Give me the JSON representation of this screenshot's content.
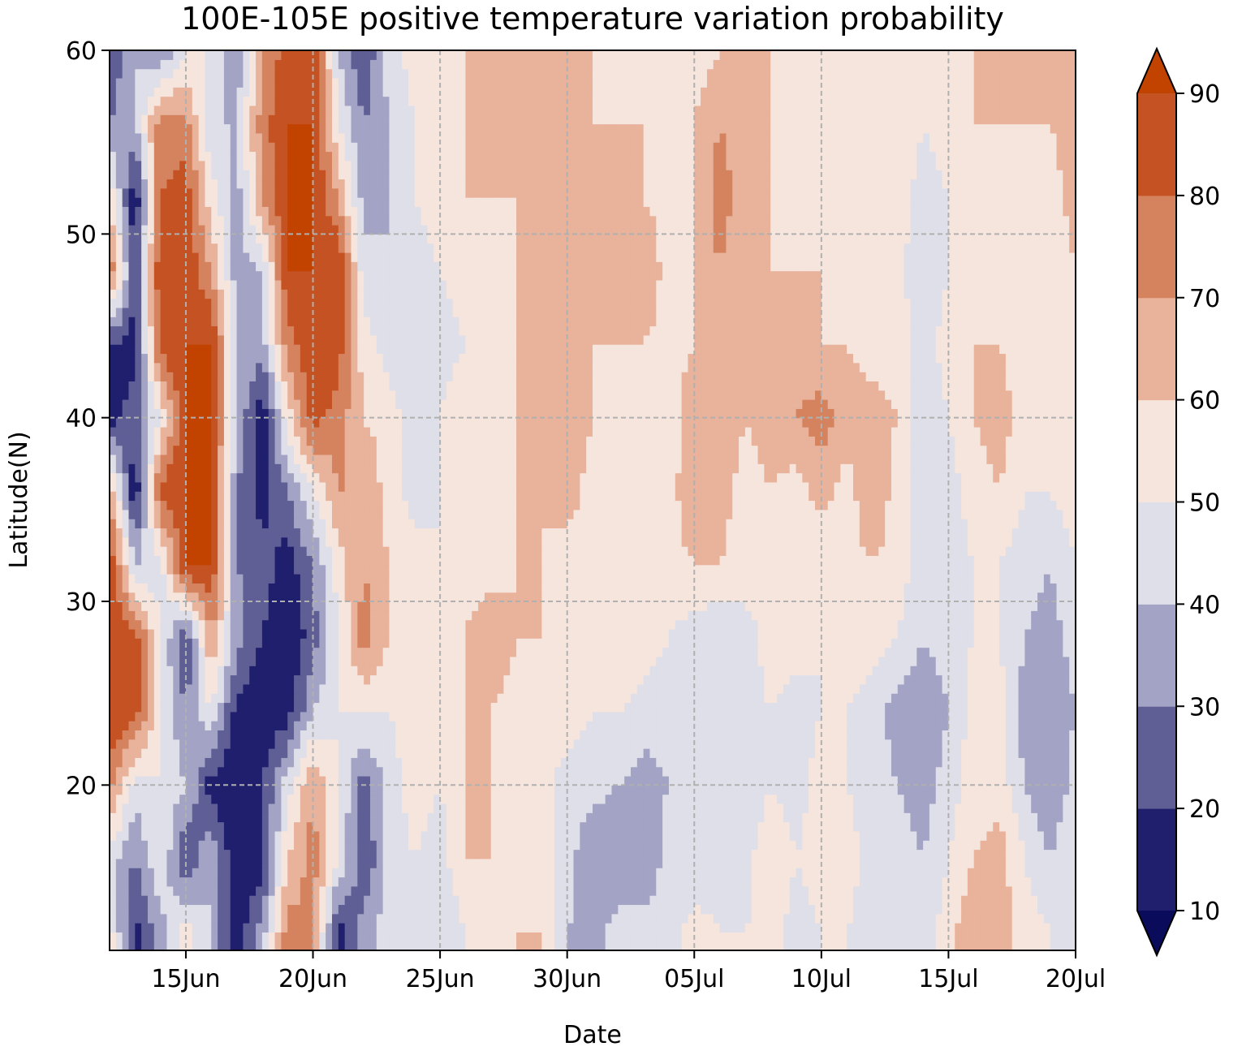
{
  "chart_data": {
    "type": "heatmap",
    "subtype": "filled-contour",
    "title": "100E-105E positive temperature variation probability",
    "xlabel": "Date",
    "ylabel": "Latitude(N)",
    "x_axis": {
      "type": "date",
      "range": [
        "2022-06-12",
        "2022-07-20"
      ],
      "ticks": [
        "15Jun",
        "20Jun",
        "25Jun",
        "30Jun",
        "05Jul",
        "10Jul",
        "15Jul",
        "20Jul"
      ],
      "tick_dates": [
        "2022-06-15",
        "2022-06-20",
        "2022-06-25",
        "2022-06-30",
        "2022-07-05",
        "2022-07-10",
        "2022-07-15",
        "2022-07-20"
      ]
    },
    "y_axis": {
      "range": [
        11,
        60
      ],
      "ticks": [
        20,
        30,
        40,
        50,
        60
      ]
    },
    "grid": true,
    "colorbar": {
      "levels": [
        10,
        20,
        30,
        40,
        50,
        60,
        70,
        80,
        90
      ],
      "tick_labels": [
        "10",
        "20",
        "30",
        "40",
        "50",
        "60",
        "70",
        "80",
        "90"
      ],
      "colors": [
        "#0b0b5c",
        "#1f1f6e",
        "#5f5f96",
        "#a3a3c5",
        "#dfdfe9",
        "#f6e5dd",
        "#e8b29b",
        "#d5835f",
        "#c55222",
        "#c24200"
      ],
      "extend": "both",
      "placement": "right"
    },
    "dates": [
      "12Jun",
      "13Jun",
      "14Jun",
      "15Jun",
      "16Jun",
      "17Jun",
      "18Jun",
      "19Jun",
      "20Jun",
      "21Jun",
      "22Jun",
      "23Jun",
      "24Jun",
      "25Jun",
      "26Jun",
      "27Jun",
      "28Jun",
      "29Jun",
      "30Jun",
      "01Jul",
      "02Jul",
      "03Jul",
      "04Jul",
      "05Jul",
      "06Jul",
      "07Jul",
      "08Jul",
      "09Jul",
      "10Jul",
      "11Jul",
      "12Jul",
      "13Jul",
      "14Jul",
      "15Jul",
      "16Jul",
      "17Jul",
      "18Jul",
      "19Jul",
      "20Jul"
    ],
    "latitudes": [
      12,
      16,
      20,
      24,
      28,
      32,
      36,
      40,
      44,
      48,
      52,
      56,
      60
    ],
    "values": [
      [
        55,
        15,
        35,
        55,
        40,
        12,
        35,
        75,
        70,
        15,
        35,
        45,
        50,
        40,
        50,
        55,
        60,
        60,
        40,
        35,
        45,
        45,
        45,
        55,
        50,
        50,
        55,
        45,
        50,
        50,
        45,
        50,
        45,
        55,
        70,
        65,
        55,
        50,
        45
      ],
      [
        45,
        30,
        50,
        20,
        40,
        10,
        15,
        60,
        75,
        50,
        20,
        45,
        50,
        45,
        60,
        60,
        60,
        55,
        45,
        30,
        30,
        30,
        45,
        40,
        45,
        45,
        60,
        50,
        55,
        55,
        45,
        45,
        40,
        50,
        60,
        65,
        50,
        40,
        50
      ],
      [
        75,
        45,
        50,
        40,
        15,
        10,
        20,
        45,
        70,
        50,
        25,
        45,
        55,
        50,
        60,
        60,
        55,
        55,
        45,
        45,
        40,
        35,
        40,
        45,
        45,
        40,
        50,
        45,
        55,
        50,
        45,
        40,
        35,
        45,
        55,
        55,
        40,
        30,
        45
      ],
      [
        90,
        85,
        50,
        30,
        50,
        15,
        10,
        15,
        40,
        50,
        50,
        50,
        55,
        50,
        60,
        60,
        55,
        55,
        55,
        50,
        50,
        45,
        45,
        45,
        40,
        45,
        50,
        45,
        50,
        50,
        45,
        35,
        30,
        40,
        55,
        55,
        35,
        30,
        40
      ],
      [
        90,
        85,
        50,
        20,
        70,
        35,
        20,
        10,
        25,
        50,
        75,
        60,
        55,
        50,
        60,
        70,
        60,
        60,
        55,
        55,
        60,
        55,
        50,
        45,
        40,
        45,
        55,
        55,
        50,
        55,
        55,
        50,
        40,
        45,
        50,
        50,
        40,
        35,
        45
      ],
      [
        90,
        40,
        45,
        90,
        90,
        30,
        25,
        15,
        30,
        55,
        70,
        60,
        55,
        50,
        55,
        55,
        60,
        60,
        55,
        55,
        60,
        55,
        55,
        60,
        60,
        55,
        55,
        55,
        50,
        55,
        60,
        55,
        45,
        45,
        50,
        50,
        45,
        40,
        50
      ],
      [
        70,
        10,
        85,
        90,
        90,
        30,
        15,
        30,
        50,
        70,
        70,
        55,
        45,
        50,
        55,
        55,
        60,
        60,
        65,
        55,
        60,
        55,
        55,
        70,
        65,
        55,
        60,
        55,
        65,
        55,
        70,
        55,
        45,
        45,
        55,
        60,
        50,
        50,
        55
      ],
      [
        15,
        25,
        50,
        90,
        90,
        40,
        10,
        55,
        85,
        75,
        60,
        55,
        45,
        50,
        60,
        60,
        60,
        65,
        70,
        60,
        55,
        55,
        50,
        70,
        70,
        60,
        65,
        70,
        75,
        65,
        65,
        60,
        40,
        50,
        60,
        65,
        55,
        55,
        60
      ],
      [
        20,
        15,
        85,
        90,
        90,
        40,
        35,
        75,
        90,
        85,
        55,
        45,
        40,
        45,
        50,
        55,
        60,
        60,
        65,
        60,
        60,
        60,
        55,
        60,
        70,
        65,
        60,
        65,
        60,
        60,
        55,
        55,
        45,
        55,
        60,
        60,
        55,
        55,
        60
      ],
      [
        80,
        20,
        90,
        90,
        70,
        35,
        40,
        90,
        90,
        90,
        45,
        40,
        45,
        50,
        55,
        55,
        60,
        60,
        65,
        60,
        60,
        70,
        55,
        60,
        70,
        60,
        60,
        60,
        60,
        55,
        50,
        55,
        40,
        50,
        60,
        55,
        55,
        50,
        60
      ],
      [
        60,
        10,
        80,
        85,
        55,
        35,
        70,
        90,
        90,
        70,
        35,
        40,
        50,
        55,
        60,
        60,
        60,
        60,
        65,
        60,
        60,
        60,
        55,
        60,
        75,
        65,
        60,
        55,
        55,
        60,
        55,
        55,
        45,
        50,
        60,
        55,
        55,
        55,
        65
      ],
      [
        30,
        40,
        75,
        75,
        40,
        40,
        75,
        90,
        90,
        50,
        30,
        40,
        50,
        55,
        60,
        60,
        60,
        65,
        70,
        60,
        60,
        60,
        55,
        60,
        70,
        65,
        60,
        55,
        55,
        60,
        60,
        60,
        50,
        55,
        60,
        60,
        60,
        60,
        65
      ],
      [
        20,
        40,
        30,
        50,
        50,
        30,
        70,
        85,
        90,
        40,
        20,
        45,
        55,
        55,
        60,
        60,
        60,
        65,
        65,
        60,
        55,
        55,
        55,
        55,
        60,
        60,
        60,
        55,
        60,
        60,
        55,
        55,
        50,
        55,
        60,
        60,
        60,
        70,
        60
      ]
    ]
  }
}
